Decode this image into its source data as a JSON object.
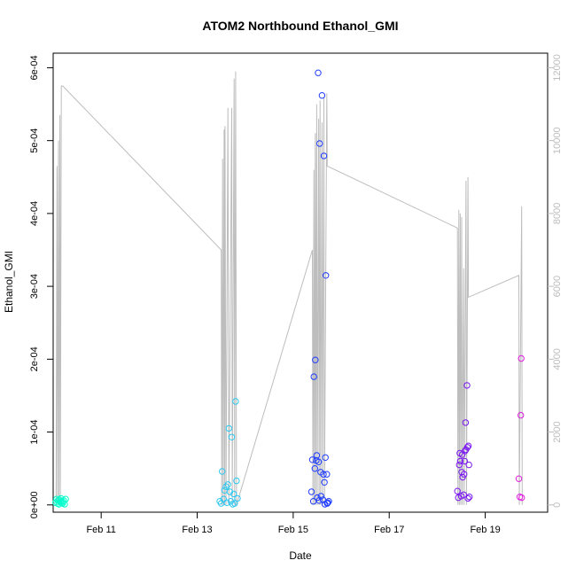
{
  "chart_data": {
    "type": "scatter",
    "title": "ATOM2 Northbound Ethanol_GMI",
    "xlabel": "Date",
    "ylabel": "Ethanol_GMI",
    "x_unit": "days in February",
    "xlim": [
      10.0,
      20.3
    ],
    "ylim": [
      -1e-05,
      0.00062
    ],
    "y2lim": [
      -200,
      12400
    ],
    "x_ticks": [
      {
        "value": 11,
        "label": "Feb 11"
      },
      {
        "value": 13,
        "label": "Feb 13"
      },
      {
        "value": 15,
        "label": "Feb 15"
      },
      {
        "value": 17,
        "label": "Feb 17"
      },
      {
        "value": 19,
        "label": "Feb 19"
      }
    ],
    "y_ticks": [
      {
        "value": 0,
        "label": "0e+00"
      },
      {
        "value": 0.0001,
        "label": "1e-04"
      },
      {
        "value": 0.0002,
        "label": "2e-04"
      },
      {
        "value": 0.0003,
        "label": "3e-04"
      },
      {
        "value": 0.0004,
        "label": "4e-04"
      },
      {
        "value": 0.0005,
        "label": "5e-04"
      },
      {
        "value": 0.0006,
        "label": "6e-04"
      }
    ],
    "y2_ticks": [
      {
        "value": 0,
        "label": "0"
      },
      {
        "value": 2000,
        "label": "2000"
      },
      {
        "value": 4000,
        "label": "4000"
      },
      {
        "value": 6000,
        "label": "6000"
      },
      {
        "value": 8000,
        "label": "8000"
      },
      {
        "value": 10000,
        "label": "10000"
      },
      {
        "value": 12000,
        "label": "12000"
      }
    ],
    "grid": false,
    "colors": {
      "altitude_line": "#bdbdbd",
      "points": [
        "#00ffcc",
        "#2ec8f0",
        "#1f3cff",
        "#7a18f0",
        "#e01ee0"
      ]
    },
    "series": [
      {
        "axis": "left",
        "color_index": 0,
        "points": [
          [
            10.05,
            3e-06
          ],
          [
            10.07,
            8e-06
          ],
          [
            10.09,
            2e-06
          ],
          [
            10.1,
            6e-06
          ],
          [
            10.12,
            1e-06
          ],
          [
            10.13,
            7e-06
          ],
          [
            10.15,
            4e-06
          ],
          [
            10.16,
            9e-06
          ],
          [
            10.18,
            3e-06
          ],
          [
            10.19,
            5e-06
          ],
          [
            10.2,
            2e-06
          ],
          [
            10.22,
            6e-06
          ],
          [
            10.24,
            1e-06
          ],
          [
            10.26,
            8e-06
          ]
        ]
      },
      {
        "axis": "left",
        "color_index": 1,
        "points": [
          [
            13.47,
            5e-06
          ],
          [
            13.5,
            2e-06
          ],
          [
            13.52,
            4.6e-05
          ],
          [
            13.55,
            8e-06
          ],
          [
            13.57,
            2e-05
          ],
          [
            13.6,
            2.5e-05
          ],
          [
            13.62,
            3e-06
          ],
          [
            13.64,
            2.8e-05
          ],
          [
            13.66,
            0.000105
          ],
          [
            13.68,
            1.8e-05
          ],
          [
            13.7,
            5e-06
          ],
          [
            13.72,
            9.3e-05
          ],
          [
            13.74,
            1e-06
          ],
          [
            13.76,
            1.5e-05
          ],
          [
            13.78,
            2e-06
          ],
          [
            13.8,
            0.000142
          ],
          [
            13.82,
            3.3e-05
          ],
          [
            13.84,
            9e-06
          ]
        ]
      },
      {
        "axis": "left",
        "color_index": 2,
        "points": [
          [
            15.38,
            1.8e-05
          ],
          [
            15.4,
            6.2e-05
          ],
          [
            15.42,
            5e-06
          ],
          [
            15.43,
            0.000176
          ],
          [
            15.45,
            5e-05
          ],
          [
            15.46,
            0.000199
          ],
          [
            15.48,
            6.1e-05
          ],
          [
            15.49,
            6.8e-05
          ],
          [
            15.5,
            1e-05
          ],
          [
            15.52,
            0.000593
          ],
          [
            15.53,
            5.9e-05
          ],
          [
            15.54,
            6e-06
          ],
          [
            15.55,
            0.000496
          ],
          [
            15.57,
            4.5e-05
          ],
          [
            15.58,
            1.2e-05
          ],
          [
            15.6,
            0.000562
          ],
          [
            15.62,
            7e-06
          ],
          [
            15.63,
            4.2e-05
          ],
          [
            15.64,
            0.000479
          ],
          [
            15.65,
            3.1e-05
          ],
          [
            15.66,
            1e-06
          ],
          [
            15.67,
            6.5e-05
          ],
          [
            15.68,
            0.000315
          ],
          [
            15.7,
            4.2e-05
          ],
          [
            15.71,
            2e-06
          ],
          [
            15.72,
            3e-06
          ],
          [
            15.74,
            5e-06
          ]
        ]
      },
      {
        "axis": "left",
        "color_index": 3,
        "points": [
          [
            18.42,
            1.9e-05
          ],
          [
            18.44,
            1e-05
          ],
          [
            18.46,
            5.5e-05
          ],
          [
            18.47,
            7.1e-05
          ],
          [
            18.48,
            6e-05
          ],
          [
            18.5,
            1.2e-05
          ],
          [
            18.51,
            4.5e-05
          ],
          [
            18.52,
            6.9e-05
          ],
          [
            18.53,
            3.8e-05
          ],
          [
            18.55,
            1.4e-05
          ],
          [
            18.56,
            4.2e-05
          ],
          [
            18.57,
            6e-05
          ],
          [
            18.58,
            7.4e-05
          ],
          [
            18.59,
            0.000113
          ],
          [
            18.6,
            7.6e-05
          ],
          [
            18.62,
            0.000164
          ],
          [
            18.63,
            7.9e-05
          ],
          [
            18.64,
            9e-06
          ],
          [
            18.65,
            8.1e-05
          ],
          [
            18.66,
            5.5e-05
          ],
          [
            18.67,
            1.1e-05
          ]
        ]
      },
      {
        "axis": "left",
        "color_index": 4,
        "points": [
          [
            19.7,
            3.6e-05
          ],
          [
            19.72,
            1.1e-05
          ],
          [
            19.74,
            0.000123
          ],
          [
            19.75,
            0.000201
          ],
          [
            19.76,
            1e-05
          ]
        ]
      }
    ]
  }
}
